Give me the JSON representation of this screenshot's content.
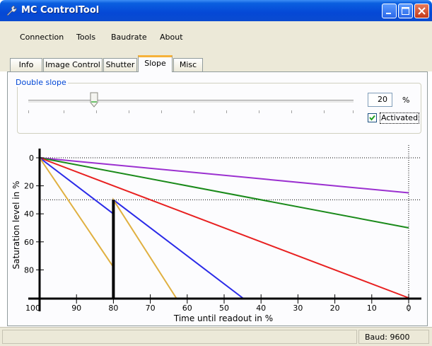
{
  "window": {
    "title": "MC ControlTool"
  },
  "menu": [
    "Connection",
    "Tools",
    "Baudrate",
    "About"
  ],
  "tabs": [
    "Info",
    "Image Control",
    "Shutter",
    "Slope",
    "Misc"
  ],
  "active_tab": "Slope",
  "slope": {
    "group_label": "Double slope",
    "slider_value_percent": 20,
    "spin_value": "20",
    "unit": "%",
    "activated_label": "Activated",
    "activated": true
  },
  "chart_data": {
    "type": "line",
    "xlabel": "Time until readout in %",
    "ylabel": "Saturation level in %",
    "x_range": [
      100,
      0
    ],
    "y_range": [
      0,
      100
    ],
    "x_ticks": [
      100,
      90,
      80,
      70,
      60,
      50,
      40,
      30,
      20,
      10,
      0
    ],
    "x_tick_labels": [
      "100",
      "90",
      "80",
      "70",
      "60",
      "50",
      "40",
      "30",
      "20",
      "10",
      "0"
    ],
    "y_ticks": [
      0,
      20,
      40,
      60,
      80
    ],
    "y_tick_labels": [
      "0",
      "20",
      "40",
      "60",
      "80"
    ],
    "reference_lines": {
      "horizontal_y": [
        0,
        30
      ],
      "vertical_x": [
        0
      ]
    },
    "marker": {
      "x": 80,
      "y_from": 30,
      "y_to": 100
    },
    "series": [
      {
        "color": "#9b30d0",
        "points": [
          [
            100,
            0
          ],
          [
            0,
            25
          ]
        ]
      },
      {
        "color": "#1a8a1a",
        "points": [
          [
            100,
            0
          ],
          [
            0,
            50
          ]
        ]
      },
      {
        "color": "#e82020",
        "points": [
          [
            100,
            0
          ],
          [
            0,
            100
          ]
        ]
      },
      {
        "color": "#2a2ae8",
        "points": [
          [
            100,
            0
          ],
          [
            80,
            40
          ],
          [
            80,
            30
          ],
          [
            45,
            100
          ]
        ]
      },
      {
        "color": "#e0b040",
        "points": [
          [
            100,
            0
          ],
          [
            80,
            78
          ],
          [
            80,
            30
          ],
          [
            63,
            100
          ]
        ]
      }
    ]
  },
  "status": {
    "baud_text": "Baud: 9600"
  },
  "colors": {
    "titlebar": "#0548d6",
    "group_label": "#0046d5",
    "active_tab_accent": "#f6b23a"
  }
}
